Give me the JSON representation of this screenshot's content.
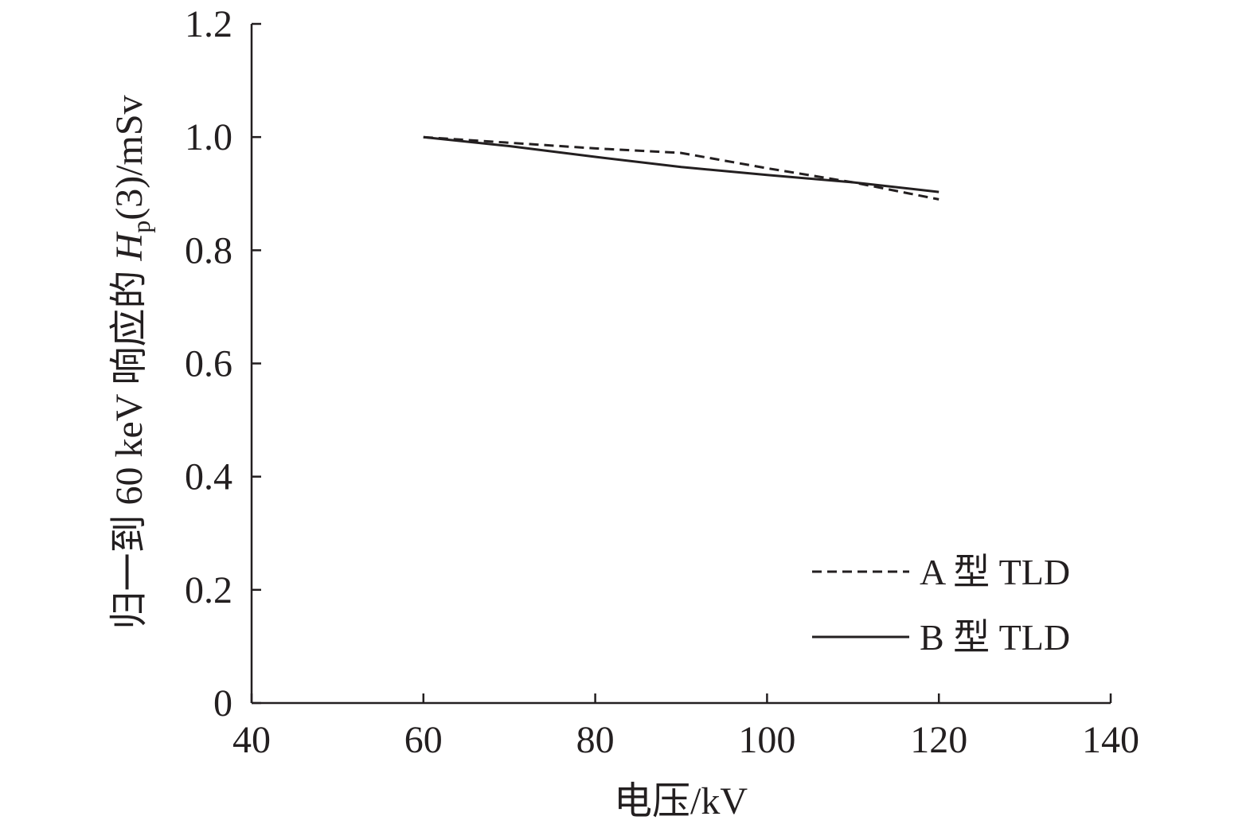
{
  "chart_data": {
    "type": "line",
    "xlabel": "电压/kV",
    "ylabel": {
      "prefix": "归一到 60 keV 响应的 ",
      "symbol": "H",
      "subscript": "p",
      "suffix": "(3)/mSv"
    },
    "xlim": [
      40,
      140
    ],
    "ylim": [
      0,
      1.2
    ],
    "x_ticks": [
      40,
      60,
      80,
      100,
      120,
      140
    ],
    "x_tick_labels": [
      "40",
      "60",
      "80",
      "100",
      "120",
      "140"
    ],
    "y_ticks": [
      0,
      0.2,
      0.4,
      0.6,
      0.8,
      1.0,
      1.2
    ],
    "y_tick_labels": [
      "0",
      "0.2",
      "0.4",
      "0.6",
      "0.8",
      "1.0",
      "1.2"
    ],
    "grid": false,
    "legend_position": "bottom-right",
    "series": [
      {
        "name": "A 型 TLD",
        "style": "dashed",
        "color": "#231f20",
        "x": [
          60,
          70,
          80,
          90,
          100,
          110,
          120
        ],
        "y": [
          1.0,
          0.99,
          0.98,
          0.972,
          0.945,
          0.92,
          0.89
        ]
      },
      {
        "name": "B 型 TLD",
        "style": "solid",
        "color": "#231f20",
        "x": [
          60,
          70,
          80,
          90,
          100,
          110,
          120
        ],
        "y": [
          1.0,
          0.984,
          0.965,
          0.947,
          0.933,
          0.92,
          0.903
        ]
      }
    ]
  }
}
